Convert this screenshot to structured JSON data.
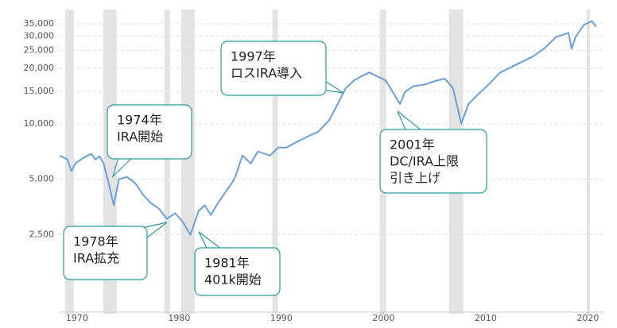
{
  "chart_data": {
    "type": "line",
    "log_scale": true,
    "grid": true,
    "x": [
      1968.3,
      1969.07,
      1969.46,
      1969.84,
      1970.6,
      1971.4,
      1971.8,
      1972.2,
      1972.6,
      1973.1,
      1973.6,
      1974.1,
      1974.9,
      1975.7,
      1976.5,
      1977.2,
      1978.0,
      1978.8,
      1979.6,
      1980.3,
      1981.1,
      1981.9,
      1982.5,
      1983.1,
      1983.8,
      1984.6,
      1985.4,
      1986.2,
      1987.0,
      1987.7,
      1988.9,
      1989.7,
      1990.5,
      1991.2,
      1992.4,
      1993.6,
      1994.7,
      1995.5,
      1996.3,
      1997.1,
      1997.8,
      1998.6,
      1999.4,
      2000.2,
      2000.9,
      2001.6,
      2002.1,
      2002.9,
      2004.1,
      2005.2,
      2006.0,
      2006.8,
      2007.6,
      2008.3,
      2009.1,
      2010.3,
      2011.4,
      2013.0,
      2014.6,
      2015.7,
      2016.9,
      2018.1,
      2018.4,
      2018.8,
      2019.6,
      2020.4,
      2020.8
    ],
    "series": [
      {
        "color": "#6a9fd8",
        "values": [
          6730,
          6400,
          5520,
          6100,
          6530,
          6870,
          6400,
          6670,
          6100,
          4760,
          3610,
          5000,
          5150,
          4760,
          4100,
          3720,
          3470,
          3050,
          3270,
          2960,
          2500,
          3370,
          3610,
          3200,
          3720,
          4320,
          5000,
          6730,
          6100,
          7070,
          6730,
          7430,
          7430,
          7810,
          8450,
          9060,
          10500,
          12800,
          15600,
          17200,
          18100,
          19000,
          18100,
          17200,
          14900,
          12800,
          14900,
          16000,
          16400,
          17200,
          17600,
          15600,
          10000,
          12800,
          14200,
          16400,
          19000,
          21000,
          23200,
          25600,
          29700,
          31200,
          25600,
          29700,
          34500,
          36200,
          33700
        ]
      }
    ],
    "shaded_ranges": [
      [
        1968.83,
        1969.69
      ],
      [
        1972.57,
        1973.89
      ],
      [
        1978.55,
        1979.1
      ],
      [
        1980.19,
        1981.51
      ],
      [
        1989.13,
        1989.67
      ],
      [
        1999.63,
        2000.25
      ],
      [
        2006.4,
        2007.8
      ],
      [
        2019.87,
        2020.18
      ]
    ],
    "shade_color": "#e3e3e3",
    "xlim": [
      1968.3,
      2021.6
    ],
    "xticks": [
      1970,
      1980,
      1990,
      2000,
      2010,
      2020
    ],
    "ylim": [
      930,
      38600
    ],
    "yticks": [
      {
        "value": 2500,
        "label": "2,500"
      },
      {
        "value": 5000,
        "label": "5,000"
      },
      {
        "value": 10000,
        "label": "10,000"
      },
      {
        "value": 15000,
        "label": "15,000"
      },
      {
        "value": 20000,
        "label": "20,000"
      },
      {
        "value": 25000,
        "label": "25,000"
      },
      {
        "value": 30000,
        "label": "30,000"
      },
      {
        "value": 35000,
        "label": "35,000"
      }
    ],
    "annotations": [
      {
        "lines": [
          "1974年",
          "IRA開始"
        ]
      },
      {
        "lines": [
          "1997年",
          "ロスIRA導入"
        ]
      },
      {
        "lines": [
          "2001年",
          "DC/IRA上限",
          "引き上げ"
        ]
      },
      {
        "lines": [
          "1978年",
          "IRA拡充"
        ]
      },
      {
        "lines": [
          "1981年",
          "401k開始"
        ]
      }
    ]
  }
}
